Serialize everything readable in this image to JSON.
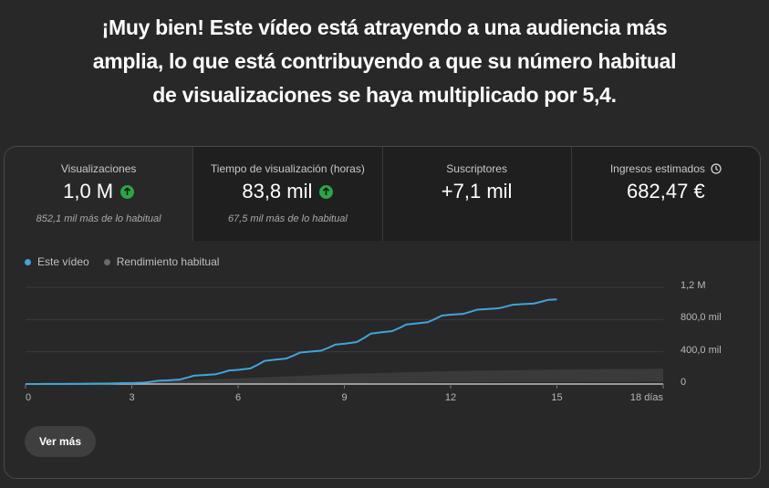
{
  "headline": {
    "lines": [
      "¡Muy bien! Este vídeo está atrayendo a una audiencia más",
      "amplia, lo que está contribuyendo a que su número habitual",
      "de visualizaciones se haya multiplicado por 5,4."
    ]
  },
  "metrics": [
    {
      "label": "Visualizaciones",
      "value": "1,0 M",
      "trend_icon": "arrow-up-icon",
      "sub": "852,1 mil más de lo habitual",
      "selected": true
    },
    {
      "label": "Tiempo de visualización (horas)",
      "value": "83,8 mil",
      "trend_icon": "arrow-up-icon",
      "sub": "67,5 mil más de lo habitual",
      "selected": false
    },
    {
      "label": "Suscriptores",
      "value": "+7,1 mil",
      "selected": false
    },
    {
      "label": "Ingresos estimados",
      "value": "682,47 €",
      "info_icon": "clock-icon",
      "selected": false
    }
  ],
  "legend": {
    "this_video": "Este vídeo",
    "typical": "Rendimiento habitual"
  },
  "colors": {
    "accent": "#3ea6d8",
    "typical_band": "#3a3a3a",
    "up_green": "#2ba640"
  },
  "chart_data": {
    "type": "line",
    "title": "",
    "xlabel": "días",
    "ylabel": "Visualizaciones",
    "x_ticks": [
      "0",
      "3",
      "6",
      "9",
      "12",
      "15",
      "18 días"
    ],
    "y_ticks": [
      "0",
      "400,0 mil",
      "800,0 mil",
      "1,2 M"
    ],
    "xlim": [
      0,
      18
    ],
    "ylim": [
      0,
      1200000
    ],
    "grid": true,
    "legend_position": "top-left",
    "series": [
      {
        "name": "Este vídeo",
        "x": [
          0,
          1,
          2,
          3,
          4,
          5,
          6,
          7,
          8,
          9,
          10,
          11,
          12,
          13,
          14,
          15
        ],
        "values": [
          0,
          2000,
          5000,
          12000,
          45000,
          110000,
          175000,
          300000,
          400000,
          500000,
          640000,
          750000,
          860000,
          930000,
          990000,
          1050000
        ]
      },
      {
        "name": "Rendimiento habitual",
        "type": "band",
        "x": [
          0,
          3,
          6,
          9,
          12,
          15,
          18
        ],
        "upper": [
          0,
          25000,
          70000,
          125000,
          160000,
          180000,
          190000
        ],
        "lower": [
          0,
          0,
          5000,
          10000,
          20000,
          25000,
          30000
        ]
      }
    ]
  },
  "button": {
    "more_label": "Ver más"
  }
}
